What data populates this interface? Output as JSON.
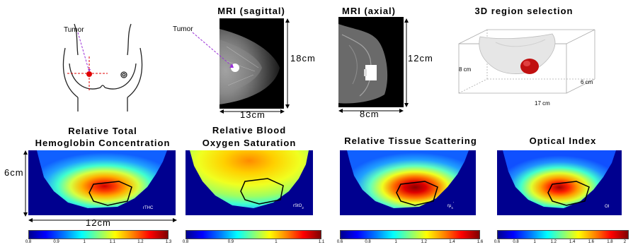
{
  "top": {
    "illustration": {
      "tumor_label": "Tumor"
    },
    "sagittal": {
      "title": "MRI (sagittal)",
      "tumor_label": "Tumor",
      "height_label": "18cm",
      "width_label": "13cm"
    },
    "axial": {
      "title": "MRI (axial)",
      "height_label": "12cm",
      "width_label": "8cm"
    },
    "region3d": {
      "title": "3D region selection",
      "left_label": "8 cm",
      "right_label": "6 cm",
      "bottom_label": "17 cm"
    }
  },
  "maps": [
    {
      "title_line1": "Relative Total",
      "title_line2": "Hemoglobin Concentration",
      "inner_label": "rTHC",
      "ticks": [
        "0.8",
        "0.9",
        "1",
        "1.1",
        "1.2",
        "1.3"
      ]
    },
    {
      "title_line1": "Relative Blood",
      "title_line2": "Oxygen Saturation",
      "inner_label": "rStO",
      "inner_sub": "2",
      "ticks": [
        "0.8",
        "0.9",
        "1",
        "1.1"
      ]
    },
    {
      "title_line1": "Relative Tissue Scattering",
      "title_line2": "",
      "inner_label": "rμ",
      "inner_sub": "s",
      "inner_sup": "'",
      "ticks": [
        "0.6",
        "0.8",
        "1",
        "1.2",
        "1.4",
        "1.6"
      ]
    },
    {
      "title_line1": "Optical Index",
      "title_line2": "",
      "inner_label": "OI",
      "ticks": [
        "0.6",
        "0.8",
        "1",
        "1.2",
        "1.4",
        "1.6",
        "1.8",
        "2"
      ]
    }
  ],
  "scale": {
    "height_label": "6cm",
    "width_label": "12cm"
  },
  "colors": {
    "accent_tumor": "#e00000",
    "arrow": "#9b30d9",
    "crosshair": "#e00000"
  }
}
